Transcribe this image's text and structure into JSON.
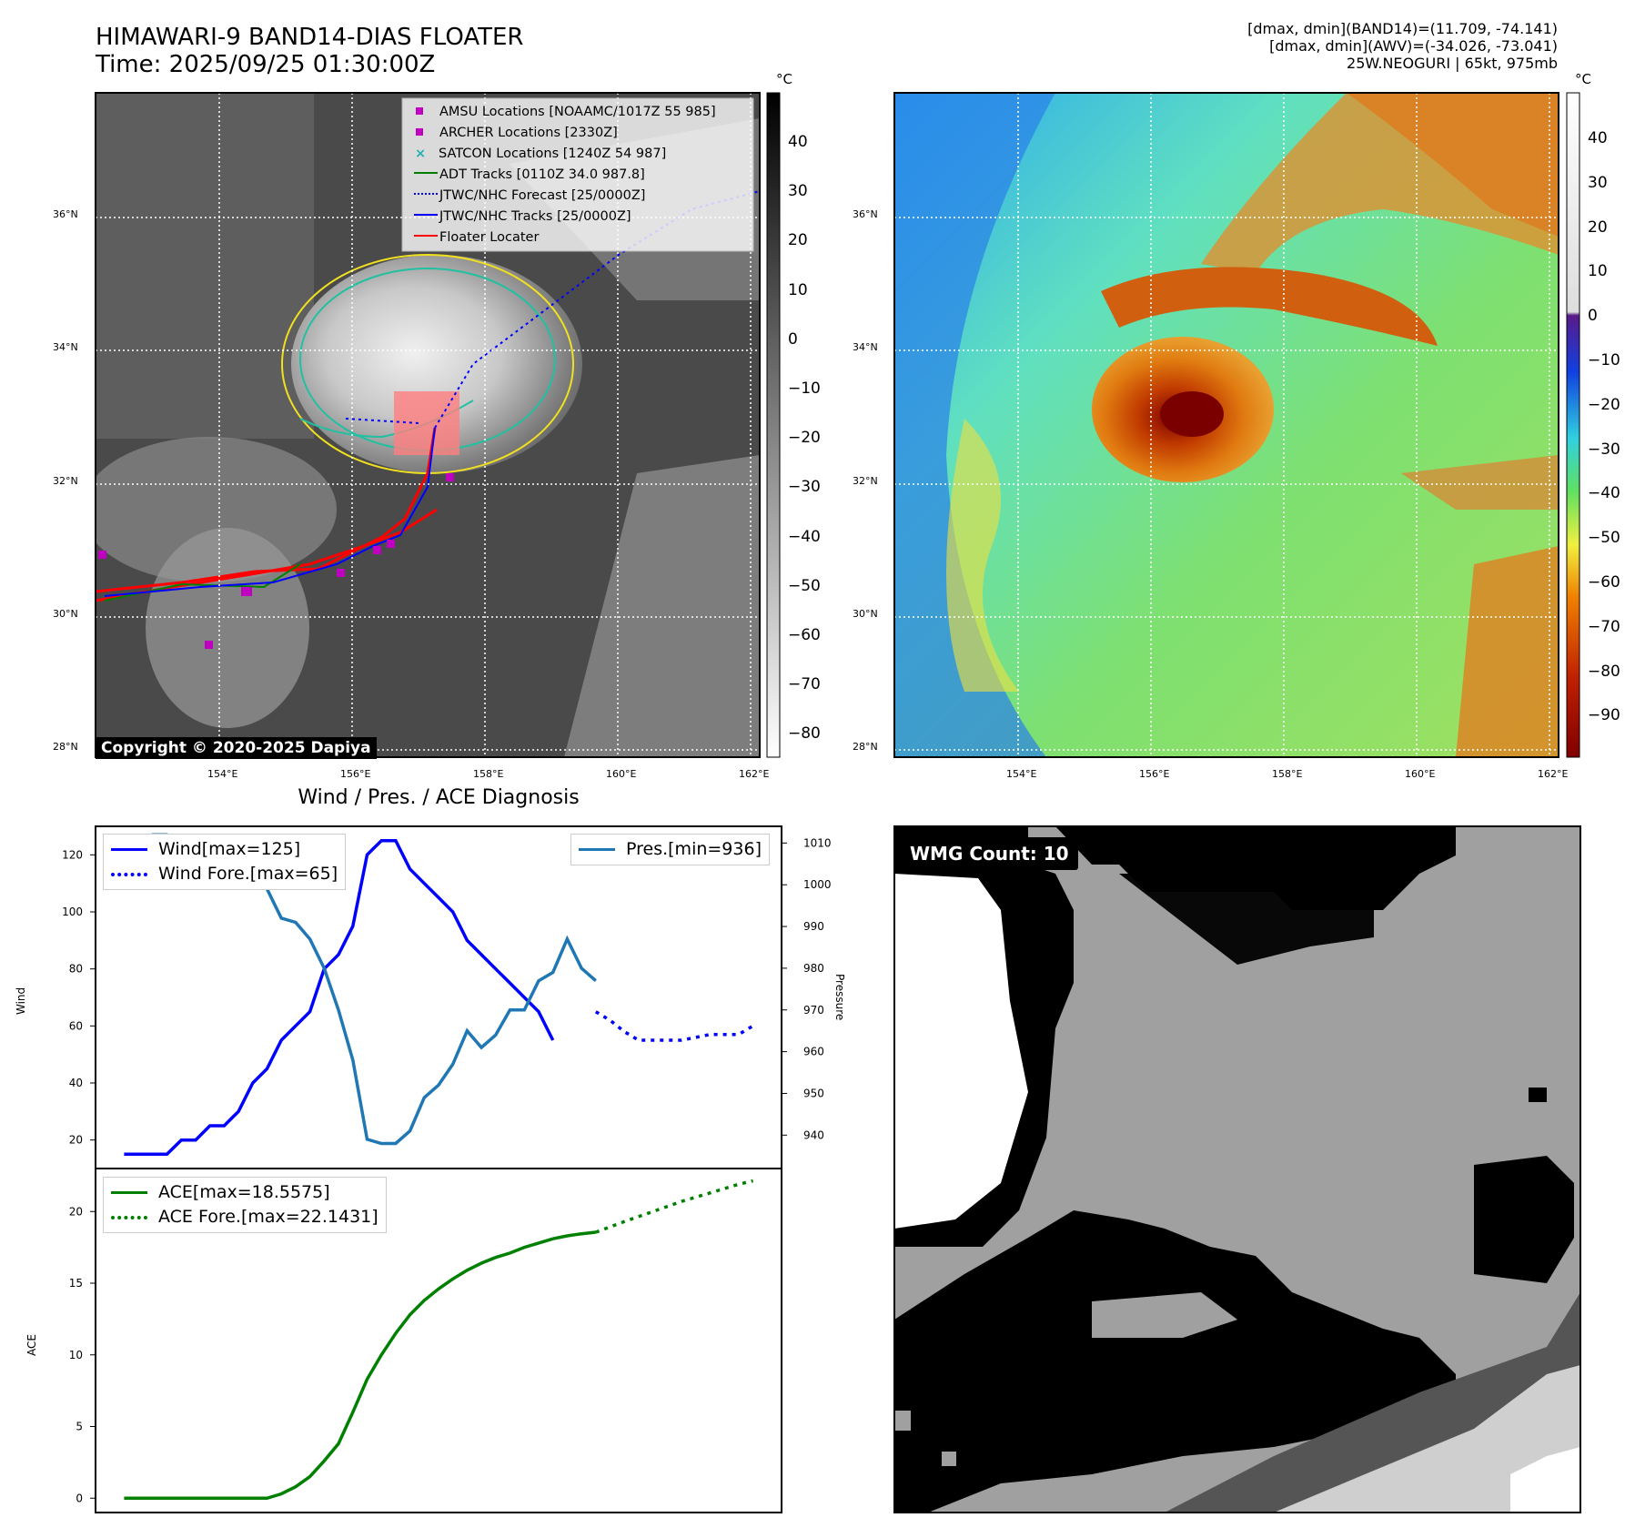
{
  "header": {
    "title_line1": "HIMAWARI-9 BAND14-DIAS FLOATER",
    "title_line2": "Time: 2025/09/25 01:30:00Z",
    "info_line1": "[dmax, dmin](BAND14)=(11.709, -74.141)",
    "info_line2": "[dmax, dmin](AWV)=(-34.026, -73.041)",
    "info_line3": "25W.NEOGURI | 65kt, 975mb"
  },
  "map_axes": {
    "lat_labels": [
      "36°N",
      "34°N",
      "32°N",
      "30°N",
      "28°N"
    ],
    "lon_labels": [
      "154°E",
      "156°E",
      "158°E",
      "160°E",
      "162°E"
    ]
  },
  "ir_panel": {
    "colorbar_unit": "°C",
    "colorbar_ticks": [
      "40",
      "30",
      "20",
      "10",
      "0",
      "−10",
      "−20",
      "−30",
      "−40",
      "−50",
      "−60",
      "−70",
      "−80"
    ],
    "legend": [
      {
        "label": "AMSU Locations [NOAAMC/1017Z 55 985]",
        "color": "#c000c0",
        "marker": "square"
      },
      {
        "label": "ARCHER Locations [2330Z]",
        "color": "#c000c0",
        "marker": "square"
      },
      {
        "label": "SATCON Locations [1240Z 54 987]",
        "color": "#20b0b0",
        "marker": "x"
      },
      {
        "label": "ADT Tracks [0110Z 34.0 987.8]",
        "color": "#008000",
        "marker": "line"
      },
      {
        "label": "JTWC/NHC Forecast [25/0000Z]",
        "color": "#0000ff",
        "marker": "dotted"
      },
      {
        "label": "JTWC/NHC Tracks [25/0000Z]",
        "color": "#0000ff",
        "marker": "line-dot"
      },
      {
        "label": "Floater Locater",
        "color": "#ff0000",
        "marker": "line"
      }
    ],
    "copyright": "Copyright © 2020-2025 Dapiya"
  },
  "wv_panel": {
    "colorbar_unit": "°C",
    "colorbar_ticks": [
      "40",
      "30",
      "20",
      "10",
      "0",
      "−10",
      "−20",
      "−30",
      "−40",
      "−50",
      "−60",
      "−70",
      "−80",
      "−90"
    ]
  },
  "wmg_panel": {
    "label": "WMG Count: 10"
  },
  "chart_data": [
    {
      "type": "line",
      "title": "Wind / Pres. / ACE Diagnosis",
      "ylabel": "Wind",
      "y2label": "Pressure",
      "ylim": [
        10,
        130
      ],
      "y2lim": [
        932,
        1014
      ],
      "yticks": [
        20,
        40,
        60,
        80,
        100,
        120
      ],
      "y2ticks": [
        940,
        950,
        960,
        970,
        980,
        990,
        1000,
        1010
      ],
      "series": [
        {
          "name": "Wind[max=125]",
          "axis": "left",
          "color": "#0000ff",
          "style": "solid",
          "x": [
            0,
            1,
            2,
            3,
            4,
            5,
            6,
            7,
            8,
            9,
            10,
            11,
            12,
            13,
            14,
            15,
            16,
            17,
            18,
            19,
            20,
            21,
            22,
            23,
            24,
            25,
            26,
            27,
            28,
            29,
            30
          ],
          "values": [
            15,
            15,
            15,
            15,
            20,
            20,
            25,
            25,
            30,
            40,
            45,
            55,
            60,
            65,
            80,
            85,
            95,
            120,
            125,
            125,
            115,
            110,
            105,
            100,
            90,
            85,
            80,
            75,
            70,
            65,
            55
          ]
        },
        {
          "name": "Wind Fore.[max=65]",
          "axis": "left",
          "color": "#0000ff",
          "style": "dotted",
          "x": [
            33,
            34,
            35,
            36,
            37,
            38,
            39,
            40,
            41,
            42,
            43,
            44
          ],
          "values": [
            65,
            62,
            58,
            55,
            55,
            55,
            55,
            56,
            57,
            57,
            57,
            60
          ]
        },
        {
          "name": "Pres.[min=936]",
          "axis": "right",
          "color": "#1f77b4",
          "style": "solid",
          "x": [
            0,
            1,
            2,
            3,
            4,
            5,
            6,
            7,
            8,
            9,
            10,
            11,
            12,
            13,
            14,
            15,
            16,
            17,
            18,
            19,
            20,
            21,
            22,
            23,
            24,
            25,
            26,
            27,
            28,
            29,
            30,
            31,
            32,
            33
          ],
          "values": [
            1009,
            1009,
            1012,
            1012,
            1010,
            1009,
            1009,
            1009,
            1008,
            1005,
            999,
            992,
            991,
            987,
            980,
            970,
            958,
            939,
            938,
            938,
            941,
            949,
            952,
            957,
            965,
            961,
            964,
            970,
            970,
            977,
            979,
            987,
            980,
            977
          ]
        }
      ]
    },
    {
      "type": "line",
      "ylabel": "ACE",
      "ylim": [
        -1,
        23
      ],
      "yticks": [
        0,
        5,
        10,
        15,
        20
      ],
      "series": [
        {
          "name": "ACE[max=18.5575]",
          "color": "#008000",
          "style": "solid",
          "x": [
            0,
            2,
            4,
            6,
            8,
            10,
            11,
            12,
            13,
            14,
            15,
            16,
            17,
            18,
            19,
            20,
            21,
            22,
            23,
            24,
            25,
            26,
            27,
            28,
            29,
            30,
            31,
            32,
            33
          ],
          "values": [
            0,
            0,
            0,
            0,
            0,
            0,
            0.3,
            0.8,
            1.5,
            2.6,
            3.8,
            6.0,
            8.3,
            10.0,
            11.5,
            12.8,
            13.8,
            14.6,
            15.3,
            15.9,
            16.4,
            16.8,
            17.1,
            17.5,
            17.8,
            18.1,
            18.3,
            18.45,
            18.5575
          ]
        },
        {
          "name": "ACE Fore.[max=22.1431]",
          "color": "#008000",
          "style": "dotted",
          "x": [
            33,
            35,
            37,
            39,
            41,
            43,
            44
          ],
          "values": [
            18.5575,
            19.3,
            20.0,
            20.7,
            21.3,
            21.9,
            22.1431
          ]
        }
      ]
    }
  ]
}
